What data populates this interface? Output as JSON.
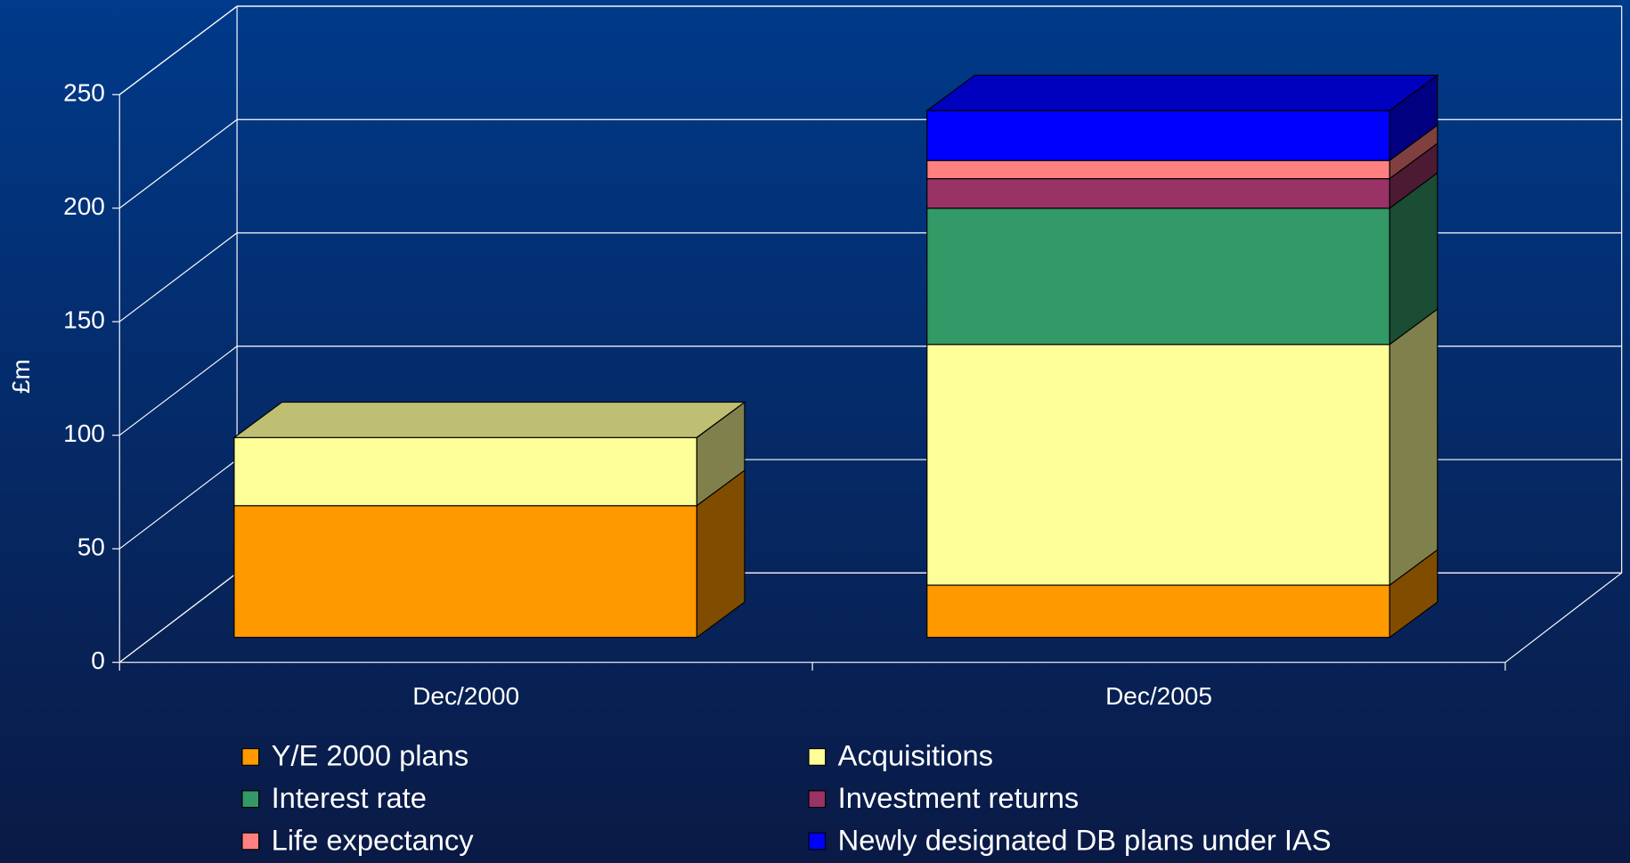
{
  "chart_data": {
    "type": "bar3d_stacked",
    "y_label": "£m",
    "categories": [
      "Dec/2000",
      "Dec/2005"
    ],
    "series": [
      {
        "name": "Y/E 2000 plans",
        "color": "#ff9900",
        "values": [
          58,
          23
        ]
      },
      {
        "name": "Acquisitions",
        "color": "#ffff99",
        "values": [
          30,
          106
        ]
      },
      {
        "name": "Interest rate",
        "color": "#339966",
        "values": [
          0,
          60
        ]
      },
      {
        "name": "Investment returns",
        "color": "#993366",
        "values": [
          0,
          13
        ]
      },
      {
        "name": "Life expectancy",
        "color": "#ff8080",
        "values": [
          0,
          8
        ]
      },
      {
        "name": "Newly designated DB plans under IAS",
        "color": "#0000ff",
        "values": [
          0,
          22
        ]
      }
    ],
    "ylim": [
      0,
      250
    ],
    "yticks": [
      0,
      50,
      100,
      150,
      200,
      250
    ],
    "grid": true
  }
}
